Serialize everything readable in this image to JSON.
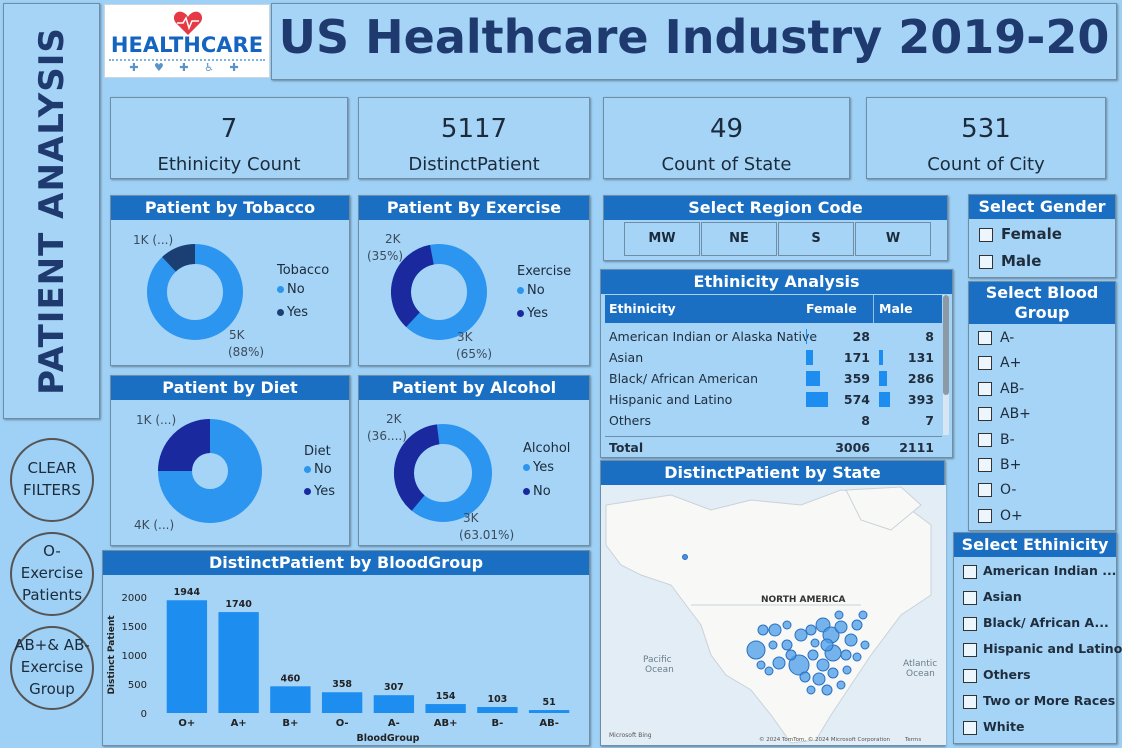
{
  "title": "US Healthcare Industry 2019-20",
  "logo_text": "HEALTHCARE",
  "side_title": "PATIENT ANALYSIS",
  "buttons": {
    "clear": [
      "CLEAR",
      "FILTERS"
    ],
    "o_minus": [
      "O-",
      "Exercise",
      "Patients"
    ],
    "ab": [
      "AB+& AB-",
      "Exercise",
      "Group"
    ]
  },
  "kpis": [
    {
      "value": "7",
      "label": "Ethinicity Count"
    },
    {
      "value": "5117",
      "label": "DistinctPatient"
    },
    {
      "value": "49",
      "label": "Count of State"
    },
    {
      "value": "531",
      "label": "Count of City"
    }
  ],
  "donuts": {
    "tobacco": {
      "title": "Patient by Tobacco",
      "legend_title": "Tobacco",
      "legend": [
        "No",
        "Yes"
      ],
      "label_small": "1K (...)",
      "label_big": "5K",
      "label_big_pct": "(88%)",
      "values": {
        "No": 88,
        "Yes": 12
      },
      "colors": {
        "No": "#2b95ef",
        "Yes": "#1b3f72"
      }
    },
    "exercise": {
      "title": "Patient By Exercise",
      "legend_title": "Exercise",
      "legend": [
        "No",
        "Yes"
      ],
      "label_small": "2K",
      "label_small_pct": "(35%)",
      "label_big": "3K",
      "label_big_pct": "(65%)",
      "values": {
        "No": 65,
        "Yes": 35
      },
      "colors": {
        "No": "#2b95ef",
        "Yes": "#1a2a9e"
      }
    },
    "diet": {
      "title": "Patient by Diet",
      "legend_title": "Diet",
      "legend": [
        "No",
        "Yes"
      ],
      "label_small": "1K (...)",
      "label_big": "4K (...)",
      "values": {
        "No": 75,
        "Yes": 25
      },
      "colors": {
        "No": "#2b95ef",
        "Yes": "#1a2a9e"
      }
    },
    "alcohol": {
      "title": "Patient by Alcohol",
      "legend_title": "Alcohol",
      "legend": [
        "Yes",
        "No"
      ],
      "label_small": "2K",
      "label_small_pct": "(36....)",
      "label_big": "3K",
      "label_big_pct": "(63.01%)",
      "values": {
        "Yes": 63.01,
        "No": 36.99
      },
      "colors": {
        "Yes": "#2b95ef",
        "No": "#1a2a9e"
      }
    }
  },
  "region": {
    "title": "Select Region Code",
    "codes": [
      "MW",
      "NE",
      "S",
      "W"
    ]
  },
  "gender": {
    "title": "Select Gender",
    "options": [
      "Female",
      "Male"
    ]
  },
  "blood": {
    "title": [
      "Select Blood",
      "Group"
    ],
    "options": [
      "A-",
      "A+",
      "AB-",
      "AB+",
      "B-",
      "B+",
      "O-",
      "O+"
    ]
  },
  "ethnicity_filter": {
    "title": "Select Ethinicity",
    "options": [
      "American Indian ...",
      "Asian",
      "Black/ African A...",
      "Hispanic and Latino",
      "Others",
      "Two or More Races",
      "White"
    ]
  },
  "eth_table": {
    "title": "Ethinicity Analysis",
    "headers": [
      "Ethinicity",
      "Female",
      "Male"
    ],
    "rows": [
      {
        "name": "American Indian or Alaska Native",
        "female": 28,
        "male": 8
      },
      {
        "name": "Asian",
        "female": 171,
        "male": 131
      },
      {
        "name": "Black/ African American",
        "female": 359,
        "male": 286
      },
      {
        "name": "Hispanic and Latino",
        "female": 574,
        "male": 393
      },
      {
        "name": "Others",
        "female": 8,
        "male": 7
      }
    ],
    "total_label": "Total",
    "total_female": "3006",
    "total_male": "2111"
  },
  "map": {
    "title": "DistinctPatient by State",
    "labels": {
      "continent": "NORTH AMERICA",
      "pacific": [
        "Pacific",
        "Ocean"
      ],
      "atlantic": [
        "Atlantic",
        "Ocean"
      ],
      "bing": "Microsoft Bing",
      "copyright": "© 2024 TomTom, © 2024 Microsoft Corporation",
      "terms": "Terms"
    }
  },
  "chart_data": {
    "type": "bar",
    "title": "DistinctPatient by BloodGroup",
    "categories": [
      "O+",
      "A+",
      "B+",
      "O-",
      "A-",
      "AB+",
      "B-",
      "AB-"
    ],
    "values": [
      1944,
      1740,
      460,
      358,
      307,
      154,
      103,
      51
    ],
    "xlabel": "BloodGroup",
    "ylabel": "Distinct Patient",
    "yticks": [
      0,
      500,
      1000,
      1500,
      2000
    ],
    "ylim": [
      0,
      2000
    ],
    "color": "#1d8ef0"
  }
}
